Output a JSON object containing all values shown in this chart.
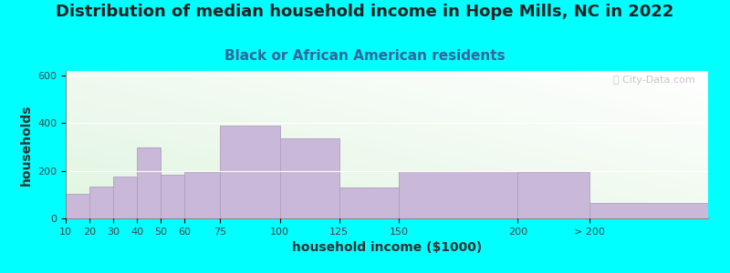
{
  "title": "Distribution of median household income in Hope Mills, NC in 2022",
  "subtitle": "Black or African American residents",
  "xlabel": "household income ($1000)",
  "ylabel": "households",
  "background_outer": "#00FFFF",
  "bar_color": "#C9B8D8",
  "bar_edge_color": "#b0a0c0",
  "bin_edges": [
    10,
    20,
    30,
    40,
    50,
    60,
    75,
    100,
    125,
    150,
    200,
    230,
    280
  ],
  "values": [
    105,
    135,
    175,
    300,
    185,
    195,
    390,
    335,
    130,
    200,
    195,
    65
  ],
  "tick_positions": [
    10,
    20,
    30,
    40,
    50,
    60,
    75,
    100,
    125,
    150,
    200,
    230
  ],
  "tick_labels": [
    "10",
    "20",
    "30",
    "40",
    "50",
    "60",
    "75",
    "100",
    "125",
    "150",
    "200",
    "> 200"
  ],
  "ylim": [
    0,
    620
  ],
  "yticks": [
    0,
    200,
    400,
    600
  ],
  "title_fontsize": 13,
  "subtitle_fontsize": 11,
  "axis_label_fontsize": 10,
  "tick_fontsize": 8,
  "watermark_text": "ⓘ City-Data.com"
}
